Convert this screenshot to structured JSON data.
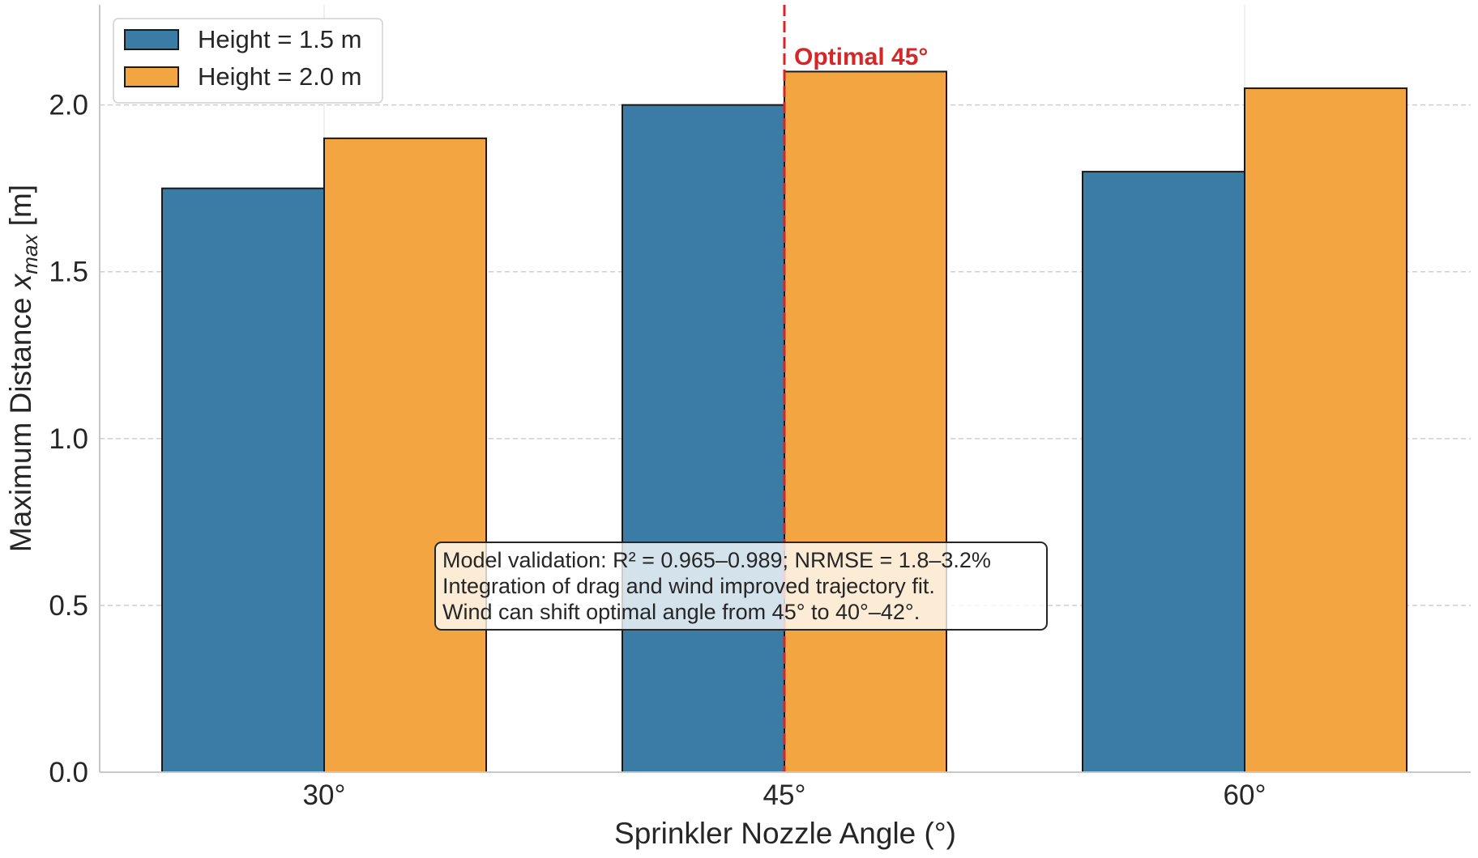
{
  "chart_data": {
    "type": "bar",
    "title": "",
    "xlabel": "Sprinkler Nozzle Angle (°)",
    "ylabel_main": "Maximum Distance ",
    "ylabel_var": "x",
    "ylabel_sub": "max",
    "ylabel_unit": " [m]",
    "categories": [
      "30°",
      "45°",
      "60°"
    ],
    "series": [
      {
        "name": "Height = 1.5 m",
        "color": "#3a7ca5",
        "values": [
          1.75,
          2.0,
          1.8
        ]
      },
      {
        "name": "Height = 2.0 m",
        "color": "#f2a541",
        "values": [
          1.9,
          2.1,
          2.05
        ]
      }
    ],
    "ylim": [
      0,
      2.3
    ],
    "yticks": [
      0.0,
      0.5,
      1.0,
      1.5,
      2.0
    ],
    "ytick_labels": [
      "0.0",
      "0.5",
      "1.0",
      "1.5",
      "2.0"
    ],
    "grid": true,
    "legend_position": "top-left",
    "reference_line": {
      "category": "45°",
      "label": "Optimal 45°",
      "color": "#d62728",
      "style": "dashed"
    },
    "annotation": {
      "lines": [
        "Model validation: R² = 0.965–0.989; NRMSE = 1.8–3.2%",
        "Integration of drag and wind improved trajectory fit.",
        "Wind can shift optimal angle from 45° to 40°–42°."
      ],
      "position": "center-bottom"
    }
  }
}
